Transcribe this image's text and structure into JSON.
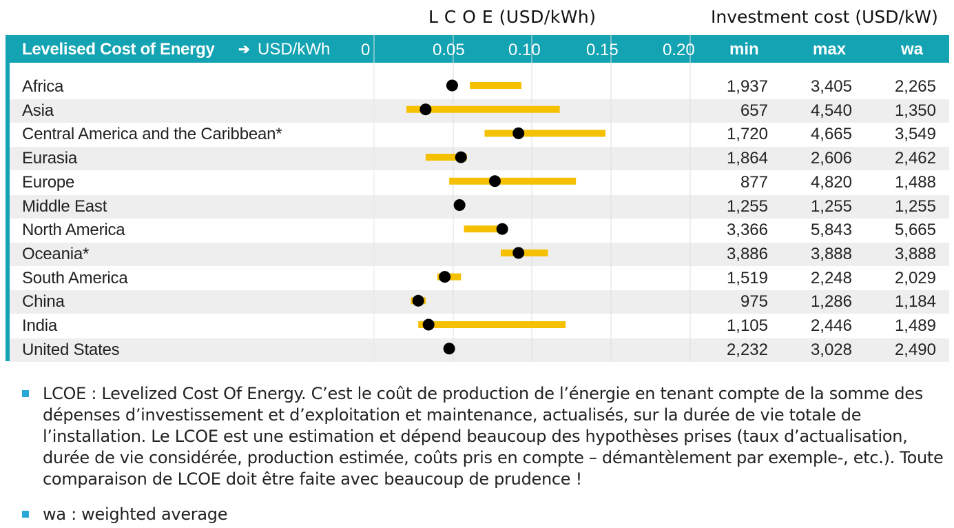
{
  "headings": {
    "lcoe": "L C O E  (USD/kWh)",
    "investment": "Investment cost (USD/kW)"
  },
  "header_bar": {
    "title": "Levelised Cost of Energy",
    "arrow": "➔",
    "unit": "USD/kWh",
    "min": "min",
    "max": "max",
    "wa": "wa"
  },
  "colors": {
    "header": "#13a3b3",
    "range_bar": "#f5c000",
    "dot": "#000000",
    "row_stripe": "#eeeeee",
    "bullet": "#29a8d8"
  },
  "chart_data": {
    "type": "range-dot",
    "title": "L C O E  (USD/kWh)",
    "xlabel": "USD/kWh",
    "x_ticks": [
      "0",
      "0.05",
      "0.10",
      "0.15",
      "0.20"
    ],
    "xlim": [
      0,
      0.2
    ],
    "grid": true,
    "categories": [
      "Africa",
      "Asia",
      "Central America and the Caribbean*",
      "Eurasia",
      "Europe",
      "Middle East",
      "North America",
      "Oceania*",
      "South America",
      "China",
      "India",
      "United States"
    ],
    "lcoe_low": [
      0.065,
      0.022,
      0.075,
      0.035,
      0.051,
      null,
      0.061,
      0.086,
      0.043,
      0.025,
      0.03,
      null
    ],
    "lcoe_high": [
      0.1,
      0.126,
      0.157,
      0.063,
      0.137,
      null,
      0.09,
      0.118,
      0.059,
      0.035,
      0.13,
      null
    ],
    "lcoe_wa": [
      0.053,
      0.035,
      0.098,
      0.059,
      0.082,
      0.058,
      0.087,
      0.098,
      0.048,
      0.03,
      0.037,
      0.051
    ]
  },
  "table": {
    "columns": [
      "min",
      "max",
      "wa"
    ],
    "rows": [
      [
        "1,937",
        "3,405",
        "2,265"
      ],
      [
        "657",
        "4,540",
        "1,350"
      ],
      [
        "1,720",
        "4,665",
        "3,549"
      ],
      [
        "1,864",
        "2,606",
        "2,462"
      ],
      [
        "877",
        "4,820",
        "1,488"
      ],
      [
        "1,255",
        "1,255",
        "1,255"
      ],
      [
        "3,366",
        "5,843",
        "5,665"
      ],
      [
        "3,886",
        "3,888",
        "3,888"
      ],
      [
        "1,519",
        "2,248",
        "2,029"
      ],
      [
        "975",
        "1,286",
        "1,184"
      ],
      [
        "1,105",
        "2,446",
        "1,489"
      ],
      [
        "2,232",
        "3,028",
        "2,490"
      ]
    ]
  },
  "notes": [
    "LCOE : Levelized Cost Of Energy. C’est le coût de production de l’énergie en tenant compte de la somme des dépenses d’investissement et d’exploitation et maintenance, actualisés, sur la durée de vie totale de l’installation. Le LCOE est une estimation et dépend beaucoup des hypothèses prises (taux d’actualisation, durée de vie considérée, production estimée, coûts pris en compte – démantèlement par exemple-, etc.). Toute comparaison de LCOE doit être faite avec beaucoup de prudence !",
    "wa : weighted average"
  ]
}
